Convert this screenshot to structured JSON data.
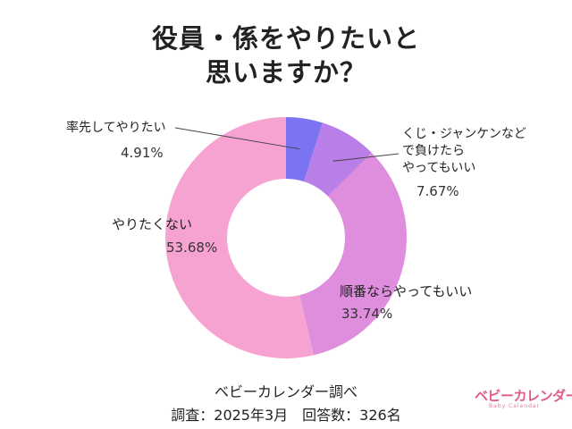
{
  "title": {
    "line1": "役員・係をやりたいと",
    "line2": "思いますか？"
  },
  "chart_data": {
    "type": "pie",
    "title": "役員・係をやりたいと思いますか？",
    "slices": [
      {
        "label_lines": [
          "率先してやりたい"
        ],
        "value": 4.91,
        "value_label": "4.91%",
        "color": "#7b74f2"
      },
      {
        "label_lines": [
          "くじ・ジャンケンなど",
          "で負けたら",
          "やってもいい"
        ],
        "value": 7.67,
        "value_label": "7.67%",
        "color": "#b97ee8"
      },
      {
        "label_lines": [
          "順番ならやってもいい"
        ],
        "value": 33.74,
        "value_label": "33.74%",
        "color": "#df8ede"
      },
      {
        "label_lines": [
          "やりたくない"
        ],
        "value": 53.68,
        "value_label": "53.68%",
        "color": "#f7a3d2"
      }
    ]
  },
  "footer": {
    "source": "ベビーカレンダー調べ",
    "survey": "調査：2025年3月　回答数：326名"
  },
  "logo": {
    "main": "ベビーカレンダー",
    "sub": "Baby Calendar"
  }
}
